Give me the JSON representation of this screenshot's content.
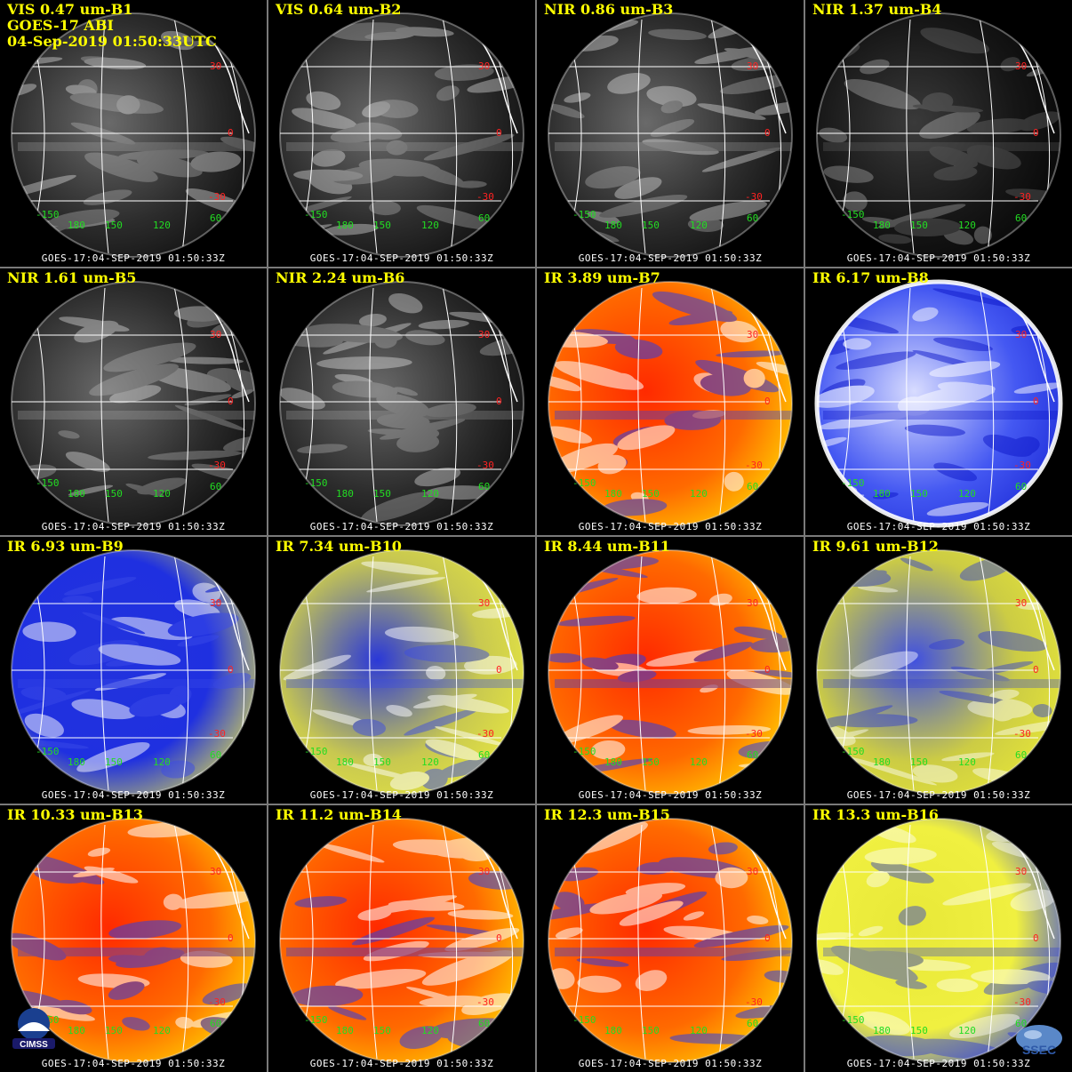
{
  "header": {
    "satellite": "GOES-17 ABI",
    "datetime": "04-Sep-2019 01:50:33UTC"
  },
  "footer_text": "GOES-17:04-SEP-2019 01:50:33Z",
  "latitude_labels": [
    "30",
    "0",
    "-30"
  ],
  "longitude_labels": [
    "-150",
    "180",
    "150",
    "120",
    "60"
  ],
  "panels": [
    {
      "title": "VIS 0.47 um-B1",
      "style": "vis"
    },
    {
      "title": "VIS 0.64 um-B2",
      "style": "vis"
    },
    {
      "title": "NIR 0.86 um-B3",
      "style": "vis"
    },
    {
      "title": "NIR 1.37 um-B4",
      "style": "nir137"
    },
    {
      "title": "NIR 1.61 um-B5",
      "style": "vis"
    },
    {
      "title": "NIR 2.24 um-B6",
      "style": "vis"
    },
    {
      "title": "IR 3.89 um-B7",
      "style": "ir_warm"
    },
    {
      "title": "IR 6.17 um-B8",
      "style": "wv_blue"
    },
    {
      "title": "IR 6.93 um-B9",
      "style": "wv_mix"
    },
    {
      "title": "IR 7.34 um-B10",
      "style": "wv_yellow"
    },
    {
      "title": "IR 8.44 um-B11",
      "style": "ir_warm"
    },
    {
      "title": "IR 9.61 um-B12",
      "style": "ozone"
    },
    {
      "title": "IR 10.33 um-B13",
      "style": "ir_warm"
    },
    {
      "title": "IR 11.2 um-B14",
      "style": "ir_warm"
    },
    {
      "title": "IR 12.3 um-B15",
      "style": "ir_warm"
    },
    {
      "title": "IR 13.3 um-B16",
      "style": "co2"
    }
  ],
  "logos": {
    "left": "CIMSS",
    "right": "SSEC"
  },
  "colors": {
    "title": "#ffff00",
    "lat_label": "#ff2222",
    "lon_label": "#22dd22",
    "divider": "#7a7a7a"
  }
}
